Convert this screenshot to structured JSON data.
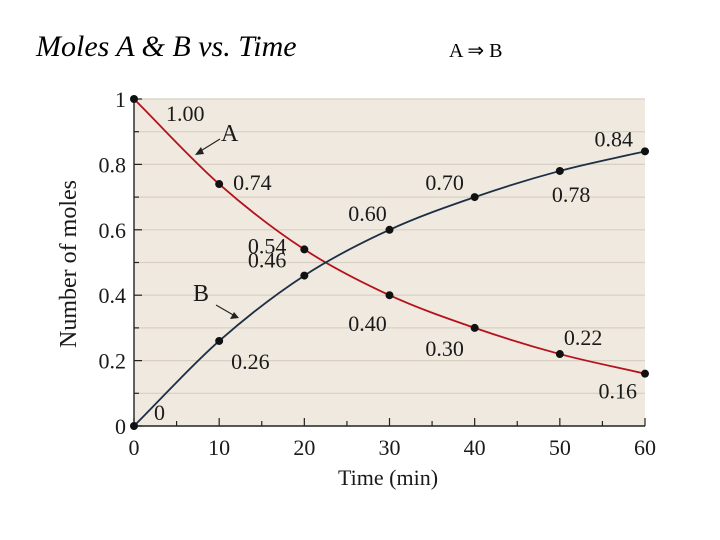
{
  "header": {
    "title": "Moles A & B vs. Time",
    "reaction": "A ⇒ B"
  },
  "colors": {
    "panel": "#efe9df",
    "grid": "#d8d0c2",
    "series_a": "#b5121b",
    "series_b": "#1c2f45",
    "points": "#111111"
  },
  "chart_data": {
    "type": "line",
    "xlabel": "Time (min)",
    "ylabel": "Number of moles",
    "xlim": [
      0,
      60
    ],
    "ylim": [
      0,
      1
    ],
    "x_ticks": [
      "0",
      "10",
      "20",
      "30",
      "40",
      "50",
      "60"
    ],
    "y_ticks": [
      "0",
      "0.2",
      "0.4",
      "0.6",
      "0.8",
      "1"
    ],
    "grid": true,
    "series": [
      {
        "name": "A",
        "x": [
          0,
          10,
          20,
          30,
          40,
          50,
          60
        ],
        "values": [
          1.0,
          0.74,
          0.54,
          0.4,
          0.3,
          0.22,
          0.16
        ],
        "labels": [
          "1.00",
          "0.74",
          "0.54",
          "0.40",
          "0.30",
          "0.22",
          "0.16"
        ]
      },
      {
        "name": "B",
        "x": [
          0,
          10,
          20,
          30,
          40,
          50,
          60
        ],
        "values": [
          0,
          0.26,
          0.46,
          0.6,
          0.7,
          0.78,
          0.84
        ],
        "labels": [
          "0",
          "0.26",
          "0.46",
          "0.60",
          "0.70",
          "0.78",
          "0.84"
        ]
      }
    ]
  }
}
